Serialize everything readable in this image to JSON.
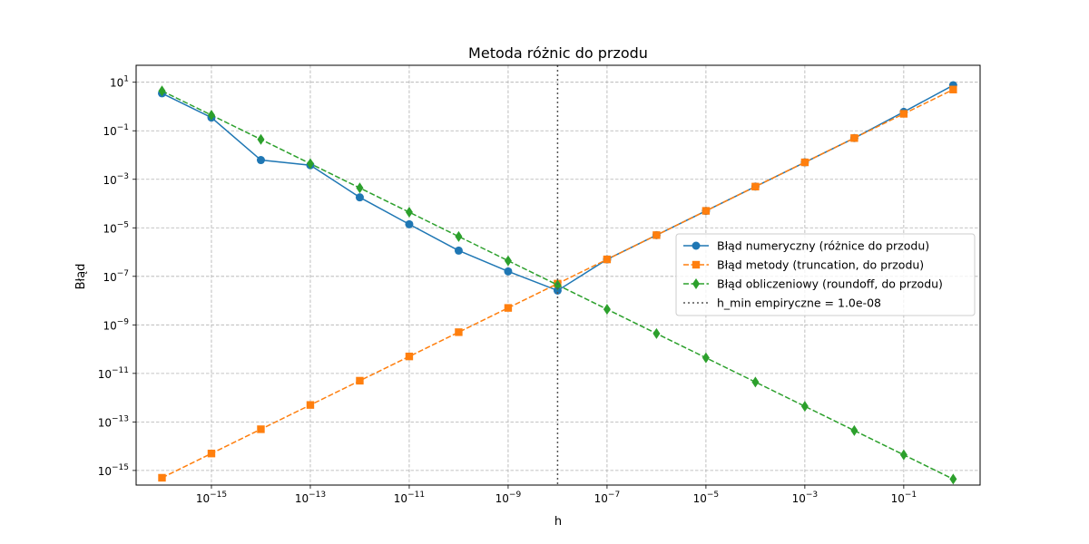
{
  "chart_data": {
    "type": "line",
    "title": "Metoda różnic do przodu",
    "xlabel": "h",
    "ylabel": "Błąd",
    "xscale": "log",
    "yscale": "log",
    "xlim": [
      3e-17,
      3.5
    ],
    "ylim": [
      2.5e-16,
      50.0
    ],
    "grid": true,
    "legend_position": "center-right",
    "x": [
      1e-16,
      1e-15,
      1e-14,
      1e-13,
      1e-12,
      1e-11,
      1e-10,
      1e-09,
      1e-08,
      1e-07,
      1e-06,
      1e-05,
      0.0001,
      0.001,
      0.01,
      0.1,
      1
    ],
    "x_ticks": [
      {
        "value": 1e-15,
        "base": "10",
        "exp": "−15"
      },
      {
        "value": 1e-13,
        "base": "10",
        "exp": "−13"
      },
      {
        "value": 1e-11,
        "base": "10",
        "exp": "−11"
      },
      {
        "value": 1e-09,
        "base": "10",
        "exp": "−9"
      },
      {
        "value": 1e-07,
        "base": "10",
        "exp": "−7"
      },
      {
        "value": 1e-05,
        "base": "10",
        "exp": "−5"
      },
      {
        "value": 0.001,
        "base": "10",
        "exp": "−3"
      },
      {
        "value": 0.1,
        "base": "10",
        "exp": "−1"
      }
    ],
    "y_ticks": [
      {
        "value": 10.0,
        "base": "10",
        "exp": "1"
      },
      {
        "value": 0.1,
        "base": "10",
        "exp": "−1"
      },
      {
        "value": 0.001,
        "base": "10",
        "exp": "−3"
      },
      {
        "value": 1e-05,
        "base": "10",
        "exp": "−5"
      },
      {
        "value": 1e-07,
        "base": "10",
        "exp": "−7"
      },
      {
        "value": 1e-09,
        "base": "10",
        "exp": "−9"
      },
      {
        "value": 1e-11,
        "base": "10",
        "exp": "−11"
      },
      {
        "value": 1e-13,
        "base": "10",
        "exp": "−13"
      },
      {
        "value": 1e-15,
        "base": "10",
        "exp": "−15"
      }
    ],
    "series": [
      {
        "name": "Błąd numeryczny (różnice do przodu)",
        "color": "#1f77b4",
        "line_style": "solid",
        "marker": "circle",
        "values": [
          3.5,
          0.35,
          0.0062,
          0.0038,
          0.00018,
          1.4e-05,
          1.15e-06,
          1.6e-07,
          2.6e-08,
          5e-07,
          5e-06,
          5e-05,
          0.0005,
          0.005,
          0.05,
          0.6,
          7.5
        ]
      },
      {
        "name": "Błąd metody (truncation, do przodu)",
        "color": "#ff7f0e",
        "line_style": "dashed",
        "marker": "square",
        "values": [
          5e-16,
          5e-15,
          5e-14,
          5e-13,
          5e-12,
          5e-11,
          5e-10,
          5e-09,
          5e-08,
          5e-07,
          5e-06,
          5e-05,
          0.0005,
          0.005,
          0.05,
          0.5,
          5
        ]
      },
      {
        "name": "Błąd obliczeniowy (roundoff, do przodu)",
        "color": "#2ca02c",
        "line_style": "dashed",
        "marker": "diamond",
        "values": [
          4.4,
          0.44,
          0.044,
          0.0044,
          0.00044,
          4.4e-05,
          4.4e-06,
          4.4e-07,
          4.4e-08,
          4.4e-09,
          4.4e-10,
          4.4e-11,
          4.4e-12,
          4.4e-13,
          4.4e-14,
          4.4e-15,
          4.4e-16
        ]
      }
    ],
    "vline": {
      "x": 1e-08,
      "label": "h_min empiryczne = 1.0e-08",
      "color": "#555555",
      "line_style": "dotted"
    }
  }
}
